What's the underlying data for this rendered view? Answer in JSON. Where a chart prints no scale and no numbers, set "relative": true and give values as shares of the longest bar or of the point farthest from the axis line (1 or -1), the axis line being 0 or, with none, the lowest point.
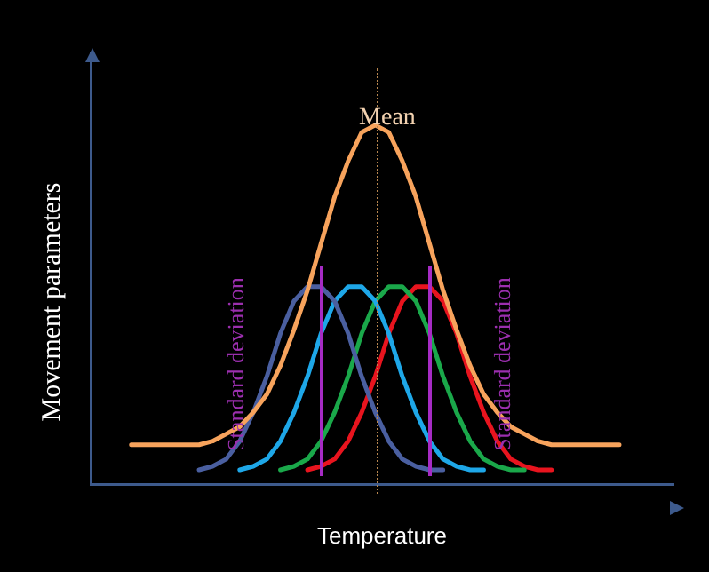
{
  "chart_data": {
    "type": "line",
    "xlabel": "Temperature",
    "ylabel": "Movement parameters",
    "relative": true,
    "legend": false,
    "marker": "none",
    "line_style": "solid",
    "categories": [
      null,
      null,
      null,
      null,
      null,
      null,
      null,
      null,
      null,
      null,
      null,
      null,
      null,
      null,
      null,
      null,
      null,
      null,
      null,
      null,
      null,
      null,
      null,
      null,
      null,
      null,
      null,
      null,
      null,
      null,
      null,
      null,
      null,
      null,
      null,
      null,
      null,
      null,
      null,
      null,
      null,
      null,
      null,
      null
    ],
    "series": [
      {
        "color": "#f7a35c",
        "values": [
          null,
          null,
          null,
          0.11,
          0.11,
          0.11,
          0.11,
          0.11,
          0.11,
          0.12,
          0.14,
          0.16,
          0.2,
          0.25,
          0.33,
          0.43,
          0.54,
          0.67,
          0.8,
          0.9,
          0.98,
          1,
          0.98,
          0.9,
          0.8,
          0.67,
          0.54,
          0.43,
          0.33,
          0.25,
          0.2,
          0.16,
          0.14,
          0.12,
          0.11,
          0.11,
          0.11,
          0.11,
          0.11,
          0.11,
          null,
          null,
          null,
          null
        ]
      },
      {
        "color": "#4a5fa0",
        "values": [
          null,
          null,
          null,
          null,
          null,
          null,
          null,
          null,
          0.04,
          0.05,
          0.07,
          0.12,
          0.2,
          0.3,
          0.42,
          0.51,
          0.55,
          0.55,
          0.51,
          0.42,
          0.3,
          0.2,
          0.12,
          0.07,
          0.05,
          0.04,
          0.04,
          null,
          null,
          null,
          null,
          null,
          null,
          null,
          null,
          null,
          null,
          null,
          null,
          null,
          null,
          null,
          null,
          null
        ]
      },
      {
        "color": "#1ea7e8",
        "values": [
          null,
          null,
          null,
          null,
          null,
          null,
          null,
          null,
          null,
          null,
          null,
          0.04,
          0.05,
          0.07,
          0.12,
          0.2,
          0.3,
          0.42,
          0.51,
          0.55,
          0.55,
          0.51,
          0.42,
          0.3,
          0.2,
          0.12,
          0.07,
          0.05,
          0.04,
          0.04,
          null,
          null,
          null,
          null,
          null,
          null,
          null,
          null,
          null,
          null,
          null,
          null,
          null,
          null
        ]
      },
      {
        "color": "#1aa84a",
        "values": [
          null,
          null,
          null,
          null,
          null,
          null,
          null,
          null,
          null,
          null,
          null,
          null,
          null,
          null,
          0.04,
          0.05,
          0.07,
          0.12,
          0.2,
          0.3,
          0.42,
          0.51,
          0.55,
          0.55,
          0.51,
          0.42,
          0.3,
          0.2,
          0.12,
          0.07,
          0.05,
          0.04,
          0.04,
          null,
          null,
          null,
          null,
          null,
          null,
          null,
          null,
          null,
          null,
          null
        ]
      },
      {
        "color": "#e8141e",
        "values": [
          null,
          null,
          null,
          null,
          null,
          null,
          null,
          null,
          null,
          null,
          null,
          null,
          null,
          null,
          null,
          null,
          0.04,
          0.05,
          0.07,
          0.12,
          0.2,
          0.3,
          0.42,
          0.51,
          0.55,
          0.55,
          0.51,
          0.42,
          0.3,
          0.2,
          0.12,
          0.07,
          0.05,
          0.04,
          0.04,
          null,
          null,
          null,
          null,
          null,
          null,
          null,
          null,
          null
        ]
      }
    ],
    "annotations": [
      "Mean",
      "Standard deviation",
      "Standard deviation"
    ]
  }
}
